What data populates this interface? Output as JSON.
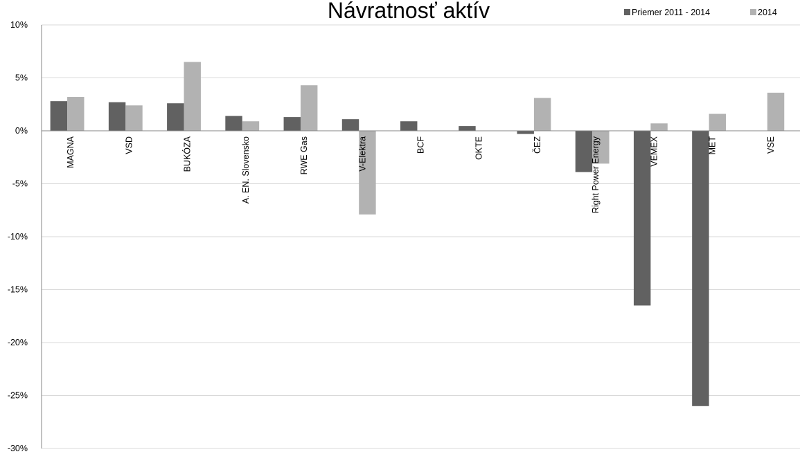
{
  "chart_data": {
    "type": "bar",
    "title": "Návratnosť aktív",
    "categories": [
      "MAGNA",
      "VSD",
      "BUKÓZA",
      "A. EN. Slovensko",
      "RWE Gas",
      "V-Elektra",
      "BCF",
      "OKTE",
      "ČEZ",
      "Right Power Energy",
      "VEMEX",
      "MET",
      "VSE"
    ],
    "series": [
      {
        "name": "Priemer 2011 - 2014",
        "color": "#616161",
        "values": [
          2.8,
          2.7,
          2.6,
          1.4,
          1.3,
          1.1,
          0.9,
          0.45,
          -0.3,
          -3.9,
          -16.5,
          -26.0,
          null
        ]
      },
      {
        "name": "2014",
        "color": "#b2b2b2",
        "values": [
          3.2,
          2.4,
          6.5,
          0.9,
          4.3,
          -7.9,
          null,
          null,
          3.1,
          -3.1,
          0.7,
          1.6,
          3.6
        ]
      }
    ],
    "ylim": [
      -30,
      10
    ],
    "yticks": [
      10,
      5,
      0,
      -5,
      -10,
      -15,
      -20,
      -25,
      -30
    ],
    "ytick_labels": [
      "10%",
      "5%",
      "0%",
      "-5%",
      "-10%",
      "-15%",
      "-20%",
      "-25%",
      "-30%"
    ],
    "xlabel": "",
    "ylabel": "",
    "grid": true,
    "legend_position": "top-right"
  }
}
